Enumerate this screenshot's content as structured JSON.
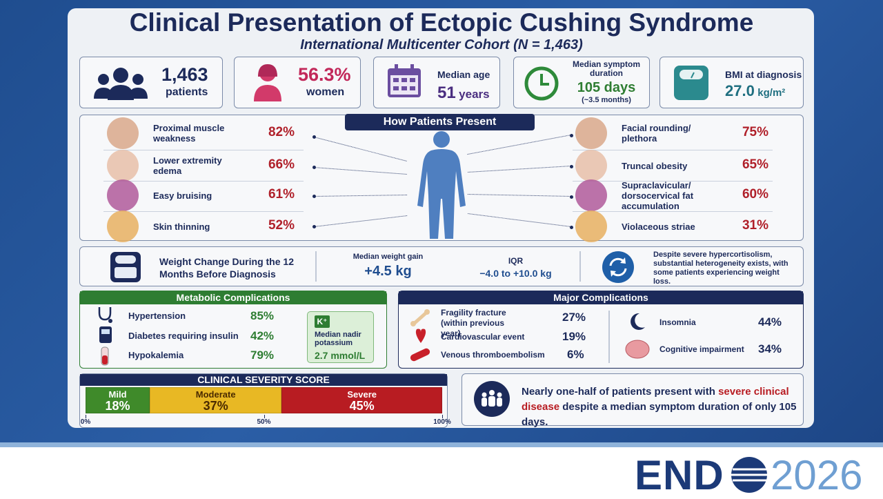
{
  "header": {
    "title": "Clinical Presentation of Ectopic Cushing Syndrome",
    "subtitle": "International Multicenter Cohort (N = 1,463)"
  },
  "stats": [
    {
      "value": "1,463",
      "label": "patients"
    },
    {
      "value": "56.3%",
      "label": "women"
    },
    {
      "label": "Median age",
      "value": "51",
      "unit": "years"
    },
    {
      "label": "Median symptom duration",
      "value": "105 days",
      "note": "(~3.5 months)"
    },
    {
      "label": "BMI at diagnosis",
      "value": "27.0",
      "unit": "kg/m²"
    }
  ],
  "presentation": {
    "title": "How Patients Present",
    "left": [
      {
        "label": "Proximal muscle weakness",
        "value": "82%"
      },
      {
        "label": "Lower extremity edema",
        "value": "66%"
      },
      {
        "label": "Easy bruising",
        "value": "61%"
      },
      {
        "label": "Skin thinning",
        "value": "52%"
      }
    ],
    "right": [
      {
        "label": "Facial rounding/ plethora",
        "value": "75%"
      },
      {
        "label": "Truncal obesity",
        "value": "65%"
      },
      {
        "label": "Supraclavicular/ dorsocervical fat accumulation",
        "value": "60%"
      },
      {
        "label": "Violaceous striae",
        "value": "31%"
      }
    ]
  },
  "weight": {
    "title": "Weight Change During the 12 Months Before Diagnosis",
    "gain_label": "Median weight gain",
    "gain": "+4.5 kg",
    "iqr_label": "IQR",
    "iqr": "−4.0 to +10.0 kg",
    "note": "Despite severe hypercortisolism, substantial heterogeneity exists, with some patients experiencing weight loss."
  },
  "metabolic": {
    "title": "Metabolic Complications",
    "items": [
      {
        "label": "Hypertension",
        "value": "85%"
      },
      {
        "label": "Diabetes requiring insulin",
        "value": "42%"
      },
      {
        "label": "Hypokalemia",
        "value": "79%"
      }
    ],
    "potassium": {
      "badge": "K⁺",
      "label": "Median nadir potassium",
      "value": "2.7 mmol/L"
    }
  },
  "major": {
    "title": "Major Complications",
    "items": [
      {
        "label": "Fragility fracture (within previous year)",
        "value": "27%"
      },
      {
        "label": "Cardiovascular event",
        "value": "19%"
      },
      {
        "label": "Venous thromboembolism",
        "value": "6%"
      },
      {
        "label": "Insomnia",
        "value": "44%"
      },
      {
        "label": "Cognitive impairment",
        "value": "34%"
      }
    ]
  },
  "severity": {
    "title": "CLINICAL SEVERITY SCORE",
    "xlim": [
      0,
      100
    ],
    "xticks": [
      {
        "value": 0,
        "label": "0%"
      },
      {
        "value": 50,
        "label": "50%"
      },
      {
        "value": 100,
        "label": "100%"
      }
    ],
    "segments": [
      {
        "name": "Mild",
        "value": 18,
        "value_label": "18%",
        "color": "#3f8a2a"
      },
      {
        "name": "Moderate",
        "value": 37,
        "value_label": "37%",
        "color": "#e8b824"
      },
      {
        "name": "Severe",
        "value": 45,
        "value_label": "45%",
        "color": "#b81c22"
      }
    ]
  },
  "callout": {
    "before": "Nearly one-half of patients present with",
    "highlight": "severe clinical disease",
    "after": "despite a median symptom duration of only 105 days."
  },
  "logo": {
    "left": "END",
    "right": "2026"
  }
}
